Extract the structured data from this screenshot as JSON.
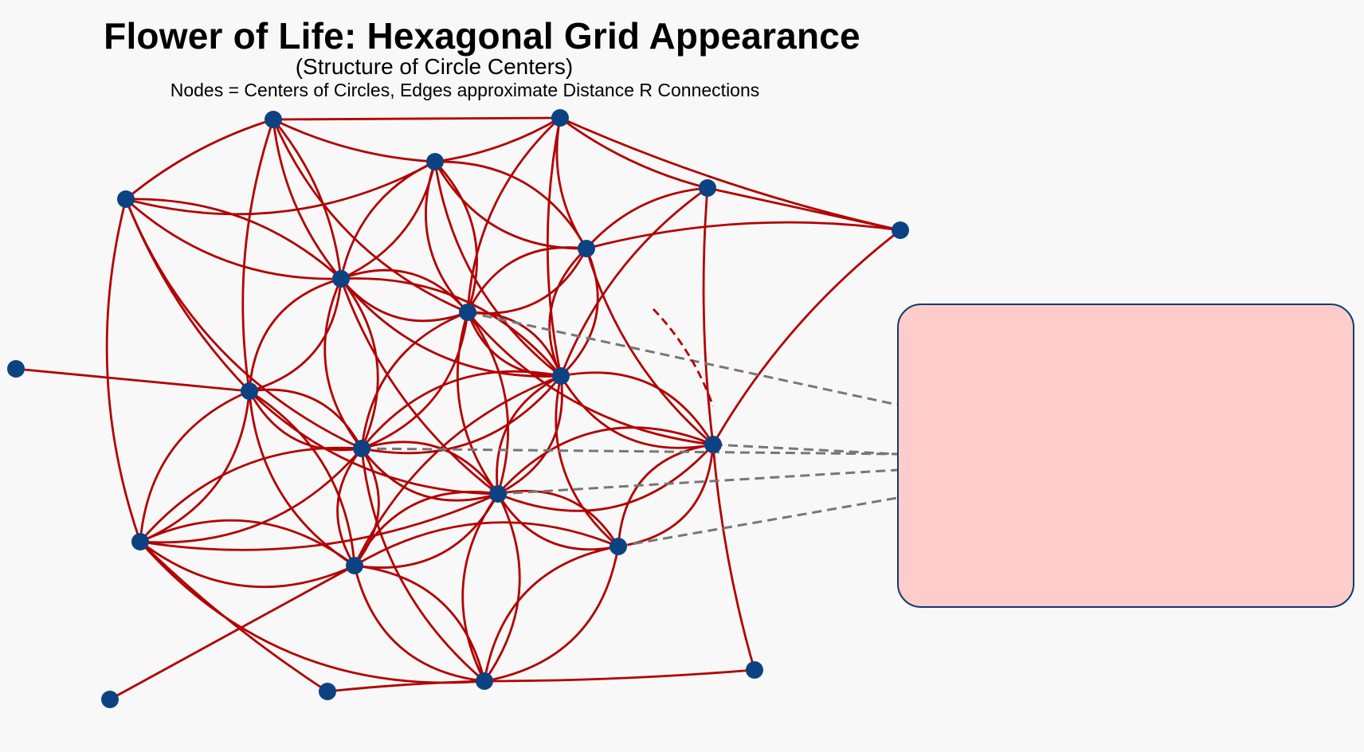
{
  "title": "Flower of Life: Hexagonal Grid Appearance",
  "subtitle": "(Structure of Circle Centers)",
  "caption": "Nodes = Centers of Circles, Edges approximate Distance R Connections",
  "colors": {
    "node": "#0d4282",
    "edge": "#b30000",
    "connector": "#777777",
    "box_fill": "#ffcccc",
    "box_border": "#0d3b72",
    "background": "#f8f8f8"
  },
  "note_box_text": "",
  "node_count": 22
}
